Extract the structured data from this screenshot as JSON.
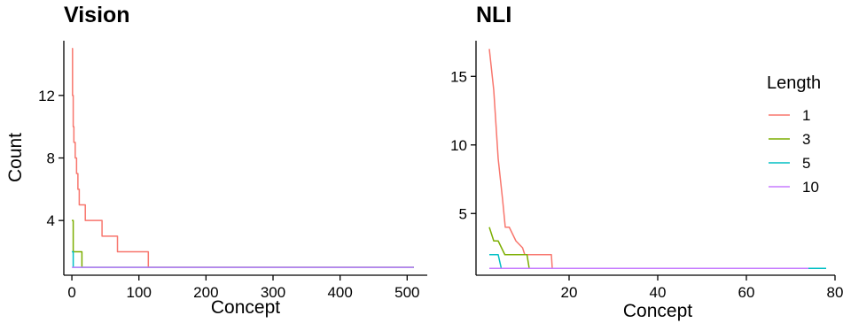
{
  "legend": {
    "title": "Length",
    "placement": "right",
    "entries": [
      {
        "label": "1",
        "color": "#F8766D"
      },
      {
        "label": "3",
        "color": "#7CAE00"
      },
      {
        "label": "5",
        "color": "#00BFC4"
      },
      {
        "label": "10",
        "color": "#C77CFF"
      }
    ]
  },
  "chart_data": [
    {
      "type": "line",
      "title": "Vision",
      "xlabel": "Concept",
      "ylabel": "Count",
      "xlim": [
        -12,
        530
      ],
      "ylim": [
        0.5,
        15.5
      ],
      "xticks": [
        0,
        100,
        200,
        300,
        400,
        500
      ],
      "yticks": [
        4,
        8,
        12
      ],
      "grid": false,
      "series": [
        {
          "name": "1",
          "color": "#F8766D",
          "step": true,
          "x": [
            0,
            1,
            2,
            3,
            5,
            7,
            9,
            11,
            14,
            20,
            30,
            45,
            68,
            113,
            114,
            510
          ],
          "y": [
            15,
            12,
            10,
            9,
            8,
            7,
            6,
            5,
            5,
            4,
            4,
            3,
            2,
            2,
            1,
            1
          ]
        },
        {
          "name": "3",
          "color": "#7CAE00",
          "step": true,
          "x": [
            0,
            2,
            14,
            15,
            510
          ],
          "y": [
            4,
            2,
            2,
            1,
            1
          ]
        },
        {
          "name": "5",
          "color": "#00BFC4",
          "step": true,
          "x": [
            0,
            2,
            510
          ],
          "y": [
            2,
            1,
            1
          ]
        },
        {
          "name": "10",
          "color": "#C77CFF",
          "step": true,
          "x": [
            0,
            510
          ],
          "y": [
            1,
            1
          ]
        }
      ]
    },
    {
      "type": "line",
      "title": "NLI",
      "xlabel": "Concept",
      "ylabel": "",
      "xlim": [
        -1,
        80
      ],
      "ylim": [
        0.5,
        17.6
      ],
      "xticks": [
        20,
        40,
        60,
        80
      ],
      "yticks": [
        5,
        10,
        15
      ],
      "grid": false,
      "series": [
        {
          "name": "1",
          "color": "#F8766D",
          "step": false,
          "x": [
            2,
            3,
            4,
            5,
            5.6,
            6.5,
            8,
            9.5,
            10,
            16,
            16.2,
            78
          ],
          "y": [
            17,
            14,
            9,
            6,
            4,
            4,
            3,
            2.5,
            2,
            2,
            1,
            1
          ]
        },
        {
          "name": "3",
          "color": "#7CAE00",
          "step": false,
          "x": [
            2,
            3,
            4,
            5.5,
            7,
            10.5,
            11,
            78
          ],
          "y": [
            4,
            3,
            3,
            2,
            2,
            2,
            1,
            1
          ]
        },
        {
          "name": "5",
          "color": "#00BFC4",
          "step": false,
          "x": [
            2,
            4,
            4.7,
            78
          ],
          "y": [
            2,
            2,
            1,
            1
          ]
        },
        {
          "name": "10",
          "color": "#C77CFF",
          "step": false,
          "x": [
            2,
            74
          ],
          "y": [
            1,
            1
          ]
        }
      ]
    }
  ]
}
